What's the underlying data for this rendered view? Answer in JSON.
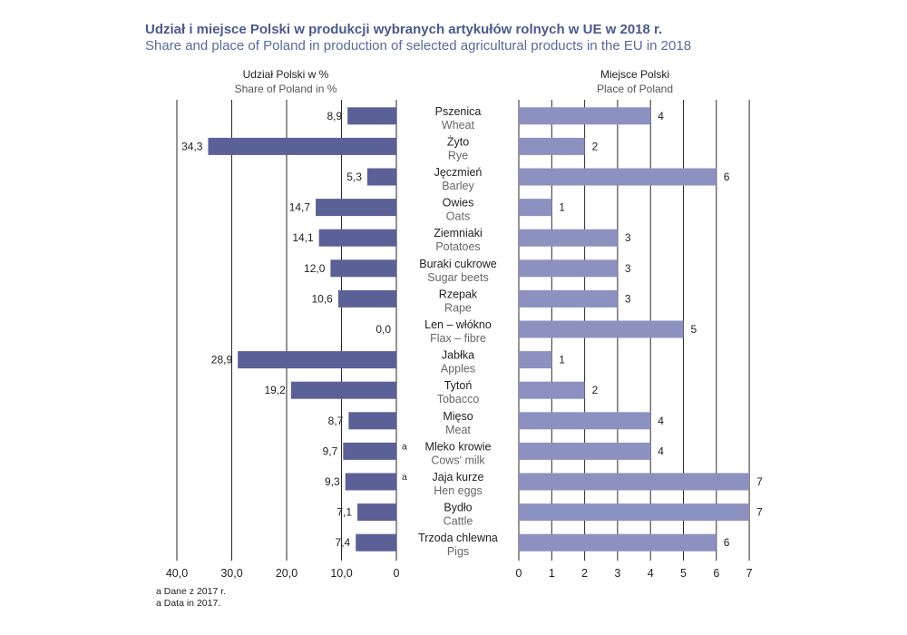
{
  "chart_data": {
    "type": "bar",
    "title": "Udział i miejsce Polski w produkcji wybranych artykułów rolnych w UE w 2018 r.",
    "subtitle": "Share and place of Poland in production of selected agricultural products in the EU in 2018",
    "left_panel": {
      "header_pl": "Udział Polski w %",
      "header_en": "Share of Poland in %",
      "xlim": [
        40,
        0
      ],
      "ticks": [
        "40,0",
        "30,0",
        "20,0",
        "10,0",
        "0"
      ],
      "tick_values": [
        40,
        30,
        20,
        10,
        0
      ],
      "color": "#5b6096"
    },
    "right_panel": {
      "header_pl": "Miejsce Polski",
      "header_en": "Place of Poland",
      "xlim": [
        0,
        7
      ],
      "ticks": [
        "0",
        "1",
        "2",
        "3",
        "4",
        "5",
        "6",
        "7"
      ],
      "tick_values": [
        0,
        1,
        2,
        3,
        4,
        5,
        6,
        7
      ],
      "color": "#8c91c0"
    },
    "categories_pl": [
      "Pszenica",
      "Żyto",
      "Jęczmień",
      "Owies",
      "Ziemniaki",
      "Buraki cukrowe",
      "Rzepak",
      "Len – włókno",
      "Jabłka",
      "Tytoń",
      "Mięso",
      "Mleko krowie",
      "Jaja kurze",
      "Bydło",
      "Trzoda chlewna"
    ],
    "categories_en": [
      "Wheat",
      "Rye",
      "Barley",
      "Oats",
      "Potatoes",
      "Sugar beets",
      "Rape",
      "Flax – fibre",
      "Apples",
      "Tobacco",
      "Meat",
      "Cows' milk",
      "Hen eggs",
      "Cattle",
      "Pigs"
    ],
    "series": [
      {
        "name": "Udział Polski w %",
        "values": [
          8.9,
          34.3,
          5.3,
          14.7,
          14.1,
          12.0,
          10.6,
          0.0,
          28.9,
          19.2,
          8.7,
          9.7,
          9.3,
          7.1,
          7.4
        ],
        "labels": [
          "8,9",
          "34,3",
          "5,3",
          "14,7",
          "14,1",
          "12,0",
          "10,6",
          "0,0",
          "28,9",
          "19,2",
          "8,7",
          "9,7",
          "9,3",
          "7,1",
          "7,4"
        ]
      },
      {
        "name": "Miejsce Polski",
        "values": [
          4,
          2,
          6,
          1,
          3,
          3,
          3,
          5,
          1,
          2,
          4,
          4,
          7,
          7,
          6
        ],
        "labels": [
          "4",
          "2",
          "6",
          "1",
          "3",
          "3",
          "3",
          "5",
          "1",
          "2",
          "4",
          "4",
          "7",
          "7",
          "6"
        ]
      }
    ],
    "footnote_marks": [
      "",
      "",
      "",
      "",
      "",
      "",
      "",
      "",
      "",
      "",
      "",
      "a",
      "a",
      "",
      ""
    ],
    "footnote_pl": "a Dane z 2017 r.",
    "footnote_en": "a  Data in 2017.",
    "grid": true
  }
}
